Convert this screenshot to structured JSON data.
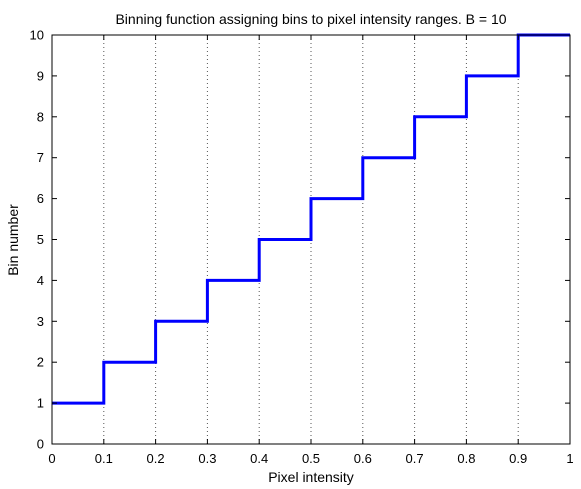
{
  "chart_data": {
    "type": "line",
    "title": "Binning function assigning bins to pixel intensity ranges. B = 10",
    "xlabel": "Pixel intensity",
    "ylabel": "Bin number",
    "xlim": [
      0,
      1
    ],
    "ylim": [
      0,
      10
    ],
    "xticks": [
      "0",
      "0.1",
      "0.2",
      "0.3",
      "0.4",
      "0.5",
      "0.6",
      "0.7",
      "0.8",
      "0.9",
      "1"
    ],
    "yticks": [
      "0",
      "1",
      "2",
      "3",
      "4",
      "5",
      "6",
      "7",
      "8",
      "9",
      "10"
    ],
    "grid": "vertical dotted",
    "step": true,
    "series": [
      {
        "color": "#0000ff",
        "x": [
          0,
          0.1,
          0.1,
          0.2,
          0.2,
          0.3,
          0.3,
          0.4,
          0.4,
          0.5,
          0.5,
          0.6,
          0.6,
          0.7,
          0.7,
          0.8,
          0.8,
          0.9,
          0.9,
          1.0
        ],
        "y": [
          1,
          1,
          2,
          2,
          3,
          3,
          4,
          4,
          5,
          5,
          6,
          6,
          7,
          7,
          8,
          8,
          9,
          9,
          10,
          10
        ]
      }
    ]
  }
}
